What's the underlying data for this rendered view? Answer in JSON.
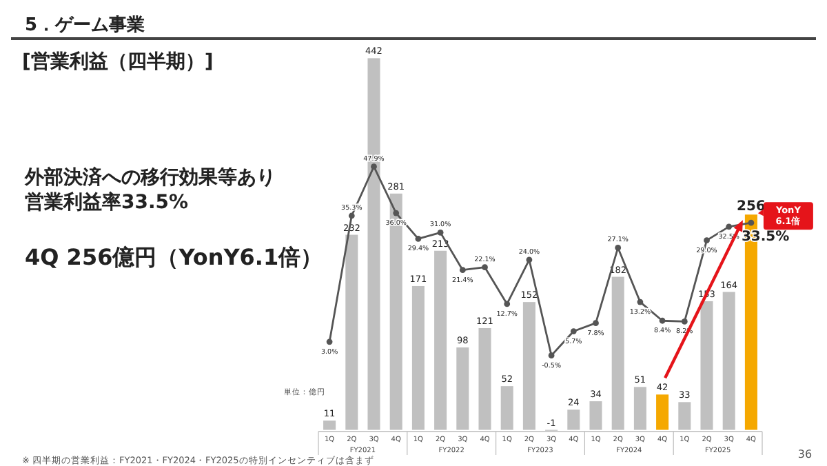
{
  "chart_data": {
    "type": "bar",
    "title": "5．ゲーム事業",
    "subtitle": "[営業利益（四半期）]",
    "categories": [
      "1Q",
      "2Q",
      "3Q",
      "4Q",
      "1Q",
      "2Q",
      "3Q",
      "4Q",
      "1Q",
      "2Q",
      "3Q",
      "4Q",
      "1Q",
      "2Q",
      "3Q",
      "4Q",
      "1Q",
      "2Q",
      "3Q",
      "4Q"
    ],
    "series": [
      {
        "colors": [
          "#c0c0c0",
          "#c0c0c0",
          "#c0c0c0",
          "#c0c0c0",
          "#c0c0c0",
          "#c0c0c0",
          "#c0c0c0",
          "#c0c0c0",
          "#c0c0c0",
          "#c0c0c0",
          "#c0c0c0",
          "#c0c0c0",
          "#c0c0c0",
          "#c0c0c0",
          "#c0c0c0",
          "#f5a800",
          "#c0c0c0",
          "#c0c0c0",
          "#c0c0c0",
          "#f5a800"
        ],
        "values": [
          11,
          232,
          442,
          281,
          171,
          213,
          98,
          121,
          52,
          152,
          -1,
          24,
          34,
          182,
          51,
          42,
          33,
          153,
          164,
          256
        ]
      },
      {
        "type": "line",
        "axis": "y2",
        "color": "#555555",
        "values": [
          3.0,
          35.3,
          47.9,
          36.0,
          29.4,
          31.0,
          21.4,
          22.1,
          12.7,
          24.0,
          -0.5,
          5.7,
          7.8,
          27.1,
          13.2,
          8.4,
          8.2,
          29.0,
          32.5,
          33.5
        ],
        "value_labels": [
          "3.0%",
          "35.3%",
          "47.9%",
          "36.0%",
          "29.4%",
          "31.0%",
          "21.4%",
          "22.1%",
          "12.7%",
          "24.0%",
          "-0.5%",
          "5.7%",
          "7.8%",
          "27.1%",
          "13.2%",
          "8.4%",
          "8.2%",
          "29.0%",
          "32.5%",
          "33.5%"
        ]
      }
    ],
    "ylim": [
      -2,
      462
    ],
    "y2lim": [
      -20,
      80
    ],
    "tick_labels": "x",
    "data_labels": true,
    "marker": "circle",
    "line_style": "solid",
    "grid": false,
    "annotations": [
      "単位：億円",
      "外部決済への移行効果等あり",
      "営業利益率33.5%",
      "4Q 256億円（YonY6.1倍）",
      "YonY\n6.1倍",
      "※ 四半期の営業利益：FY2021・FY2024・FY2025の特別インセンティブは含まず",
      "36",
      "FY2021",
      "FY2022",
      "FY2023",
      "FY2024",
      "FY2025"
    ]
  }
}
